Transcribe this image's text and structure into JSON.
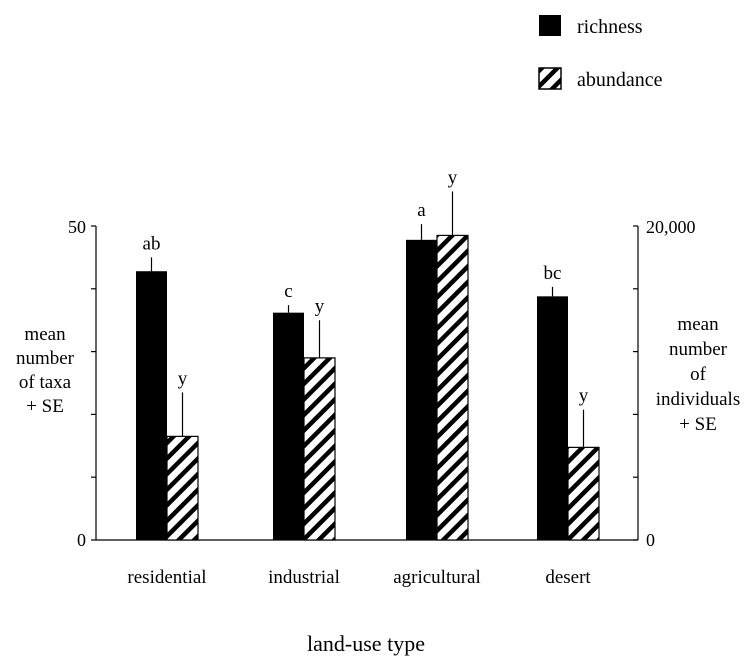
{
  "chart_data": {
    "type": "bar",
    "title": "",
    "xlabel": "land-use type",
    "ylabel_left": [
      "mean",
      "number",
      "of taxa",
      "+ SE"
    ],
    "ylabel_right": [
      "mean",
      "number",
      "of",
      "individuals",
      "+ SE"
    ],
    "categories": [
      "residential",
      "industrial",
      "agricultural",
      "desert"
    ],
    "left_axis": {
      "range": [
        0,
        50
      ],
      "tick_values": [
        0,
        10,
        20,
        30,
        40,
        50
      ],
      "tick_labels": [
        "0",
        "50"
      ]
    },
    "right_axis": {
      "range": [
        0,
        20000
      ],
      "tick_values": [
        0,
        4000,
        8000,
        12000,
        16000,
        20000
      ],
      "tick_labels": [
        "0",
        "20,000"
      ]
    },
    "series": [
      {
        "name": "richness",
        "axis": "left",
        "color": "#000000",
        "pattern": "solid",
        "values": [
          42.8,
          36.2,
          47.8,
          38.8
        ],
        "se": [
          2.2,
          1.2,
          2.5,
          1.5
        ],
        "letters": [
          "ab",
          "c",
          "a",
          "bc"
        ]
      },
      {
        "name": "abundance",
        "axis": "right",
        "color": "#000000",
        "pattern": "diagonal-hatch",
        "values": [
          6600,
          11600,
          19400,
          5900
        ],
        "se": [
          2800,
          2400,
          2800,
          2400
        ],
        "letters": [
          "y",
          "y",
          "y",
          "y"
        ]
      }
    ],
    "legend": {
      "position": "top-right",
      "entries": [
        "richness",
        "abundance"
      ]
    },
    "grid": false
  }
}
